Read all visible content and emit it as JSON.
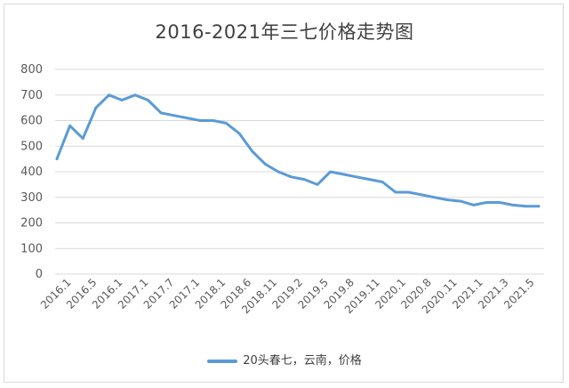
{
  "chart_data": {
    "type": "line",
    "title": "2016-2021年三七价格走势图",
    "xlabel": "",
    "ylabel": "",
    "ylim": [
      0,
      800
    ],
    "yticks": [
      0,
      100,
      200,
      300,
      400,
      500,
      600,
      700,
      800
    ],
    "grid": true,
    "legend_position": "bottom",
    "x_tick_labels": [
      "2016.1",
      "2016.5",
      "2016.1",
      "2017.1",
      "2017.7",
      "2017.1",
      "2018.1",
      "2018.6",
      "2018.11",
      "2019.2",
      "2019.5",
      "2019.8",
      "2019.11",
      "2020.1",
      "2020.8",
      "2020.11",
      "2021.1",
      "2021.3",
      "2021.5"
    ],
    "series": [
      {
        "name": "20头春七，云南，价格",
        "color": "#5b9bd5",
        "values": [
          450,
          580,
          530,
          650,
          700,
          680,
          700,
          680,
          630,
          620,
          610,
          600,
          600,
          590,
          550,
          480,
          430,
          400,
          380,
          370,
          350,
          400,
          390,
          380,
          370,
          360,
          320,
          320,
          310,
          300,
          290,
          285,
          270,
          280,
          280,
          270,
          265,
          265
        ]
      }
    ]
  }
}
